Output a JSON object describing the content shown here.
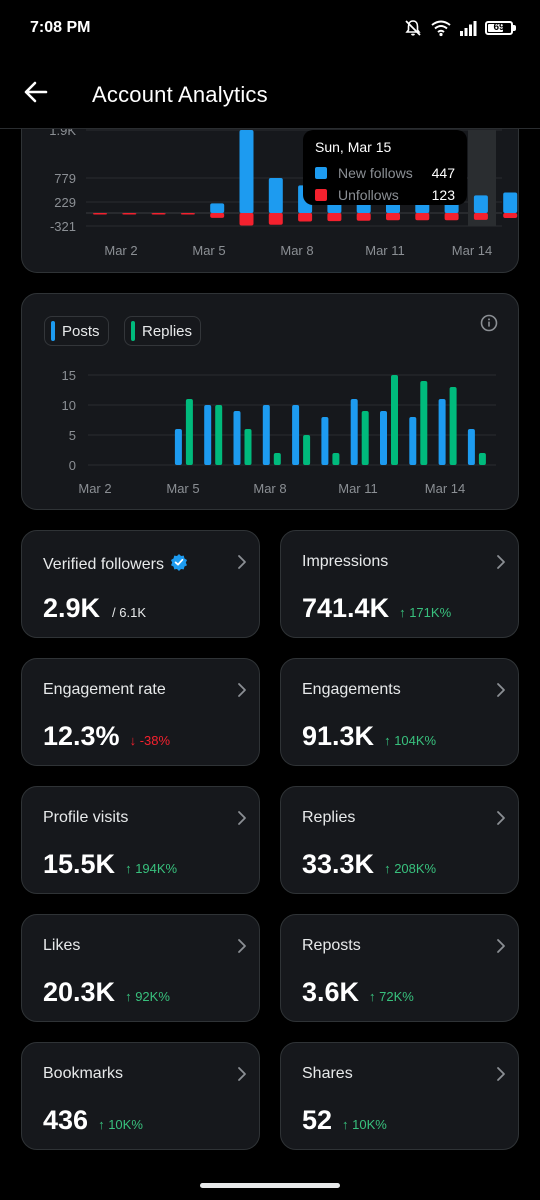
{
  "status_bar": {
    "time": "7:08 PM",
    "battery": "69"
  },
  "header": {
    "title": "Account Analytics"
  },
  "followers_chart": {
    "y_ticks": [
      "1.9K",
      "779",
      "229",
      "-321"
    ],
    "x_ticks": [
      "Mar 2",
      "Mar 5",
      "Mar 8",
      "Mar 11",
      "Mar 14"
    ],
    "colors": {
      "new_follows": "#1d9bf0",
      "unfollows": "#f4212e"
    },
    "tooltip": {
      "title": "Sun, Mar 15",
      "rows": [
        {
          "label": "New follows",
          "value": "447"
        },
        {
          "label": "Unfollows",
          "value": "123"
        }
      ]
    }
  },
  "posts_chart": {
    "legend": [
      {
        "label": "Posts",
        "color": "#1d9bf0"
      },
      {
        "label": "Replies",
        "color": "#00ba7c"
      }
    ],
    "y_ticks": [
      "15",
      "10",
      "5",
      "0"
    ],
    "x_ticks": [
      "Mar 2",
      "Mar 5",
      "Mar 8",
      "Mar 11",
      "Mar 14"
    ],
    "info_icon": "info-icon"
  },
  "metrics": [
    {
      "title": "Verified followers",
      "value": "2.9K",
      "sub": "/ 6.1K",
      "delta": "",
      "dir": "",
      "verified": true
    },
    {
      "title": "Impressions",
      "value": "741.4K",
      "sub": "",
      "delta": "171K%",
      "dir": "up"
    },
    {
      "title": "Engagement rate",
      "value": "12.3%",
      "sub": "",
      "delta": "-38%",
      "dir": "down"
    },
    {
      "title": "Engagements",
      "value": "91.3K",
      "sub": "",
      "delta": "104K%",
      "dir": "up"
    },
    {
      "title": "Profile visits",
      "value": "15.5K",
      "sub": "",
      "delta": "194K%",
      "dir": "up"
    },
    {
      "title": "Replies",
      "value": "33.3K",
      "sub": "",
      "delta": "208K%",
      "dir": "up"
    },
    {
      "title": "Likes",
      "value": "20.3K",
      "sub": "",
      "delta": "92K%",
      "dir": "up"
    },
    {
      "title": "Reposts",
      "value": "3.6K",
      "sub": "",
      "delta": "72K%",
      "dir": "up"
    },
    {
      "title": "Bookmarks",
      "value": "436",
      "sub": "",
      "delta": "10K%",
      "dir": "up"
    },
    {
      "title": "Shares",
      "value": "52",
      "sub": "",
      "delta": "10K%",
      "dir": "up"
    }
  ],
  "chart_data": [
    {
      "type": "bar",
      "categories": [
        "Mar 1",
        "Mar 2",
        "Mar 3",
        "Mar 4",
        "Mar 5",
        "Mar 6",
        "Mar 7",
        "Mar 8",
        "Mar 9",
        "Mar 10",
        "Mar 11",
        "Mar 12",
        "Mar 13",
        "Mar 14",
        "Mar 15"
      ],
      "ylim": [
        -321,
        1900
      ],
      "series": [
        {
          "name": "New follows",
          "values": [
            0,
            0,
            0,
            0,
            200,
            1900,
            779,
            610,
            420,
            420,
            380,
            380,
            380,
            380,
            447
          ]
        },
        {
          "name": "Unfollows",
          "values": [
            -20,
            -20,
            -20,
            -20,
            -120,
            -310,
            -290,
            -210,
            -200,
            -190,
            -180,
            -180,
            -180,
            -170,
            -123
          ]
        }
      ],
      "tooltip_index": 14
    },
    {
      "type": "bar",
      "categories": [
        "Mar 2",
        "Mar 3",
        "Mar 4",
        "Mar 5",
        "Mar 6",
        "Mar 7",
        "Mar 8",
        "Mar 9",
        "Mar 10",
        "Mar 11",
        "Mar 12",
        "Mar 13",
        "Mar 14",
        "Mar 15"
      ],
      "ylim": [
        0,
        16
      ],
      "series": [
        {
          "name": "Posts",
          "values": [
            0,
            0,
            0,
            6,
            10,
            9,
            10,
            10,
            8,
            11,
            9,
            8,
            11,
            6
          ]
        },
        {
          "name": "Replies",
          "values": [
            0,
            0,
            0,
            11,
            10,
            6,
            2,
            5,
            2,
            9,
            15,
            14,
            13,
            2
          ]
        }
      ]
    }
  ]
}
